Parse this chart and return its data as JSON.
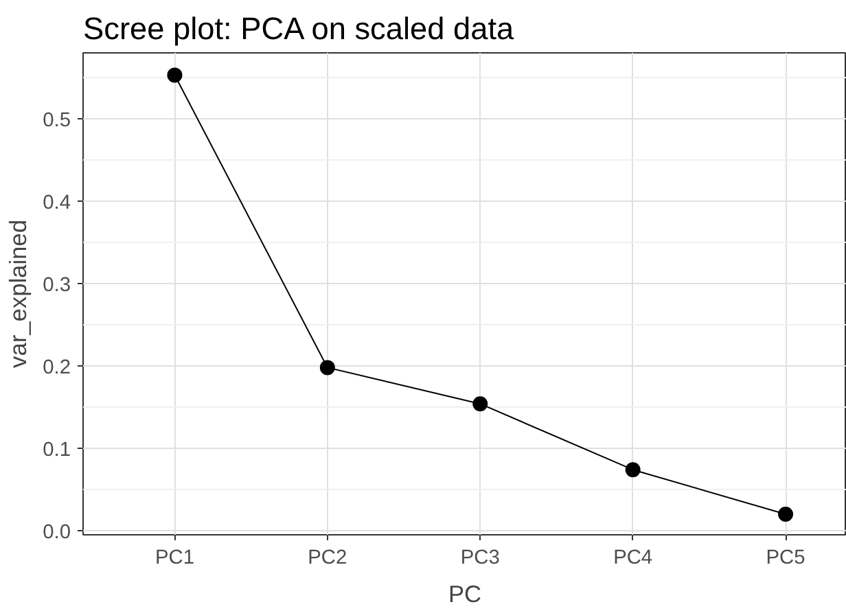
{
  "chart_data": {
    "type": "line",
    "title": "Scree plot: PCA on scaled data",
    "xlabel": "PC",
    "ylabel": "var_explained",
    "categories": [
      "PC1",
      "PC2",
      "PC3",
      "PC4",
      "PC5"
    ],
    "series": [
      {
        "color": "#000000",
        "values": [
          0.553,
          0.198,
          0.154,
          0.074,
          0.02
        ]
      }
    ],
    "ylim": [
      -0.005,
      0.58
    ],
    "yticks": [
      {
        "value": 0,
        "label": "0.0"
      },
      0.1,
      0.2,
      0.3,
      0.4,
      0.5
    ],
    "grid": true,
    "marker": "circle",
    "line_style": "solid"
  }
}
